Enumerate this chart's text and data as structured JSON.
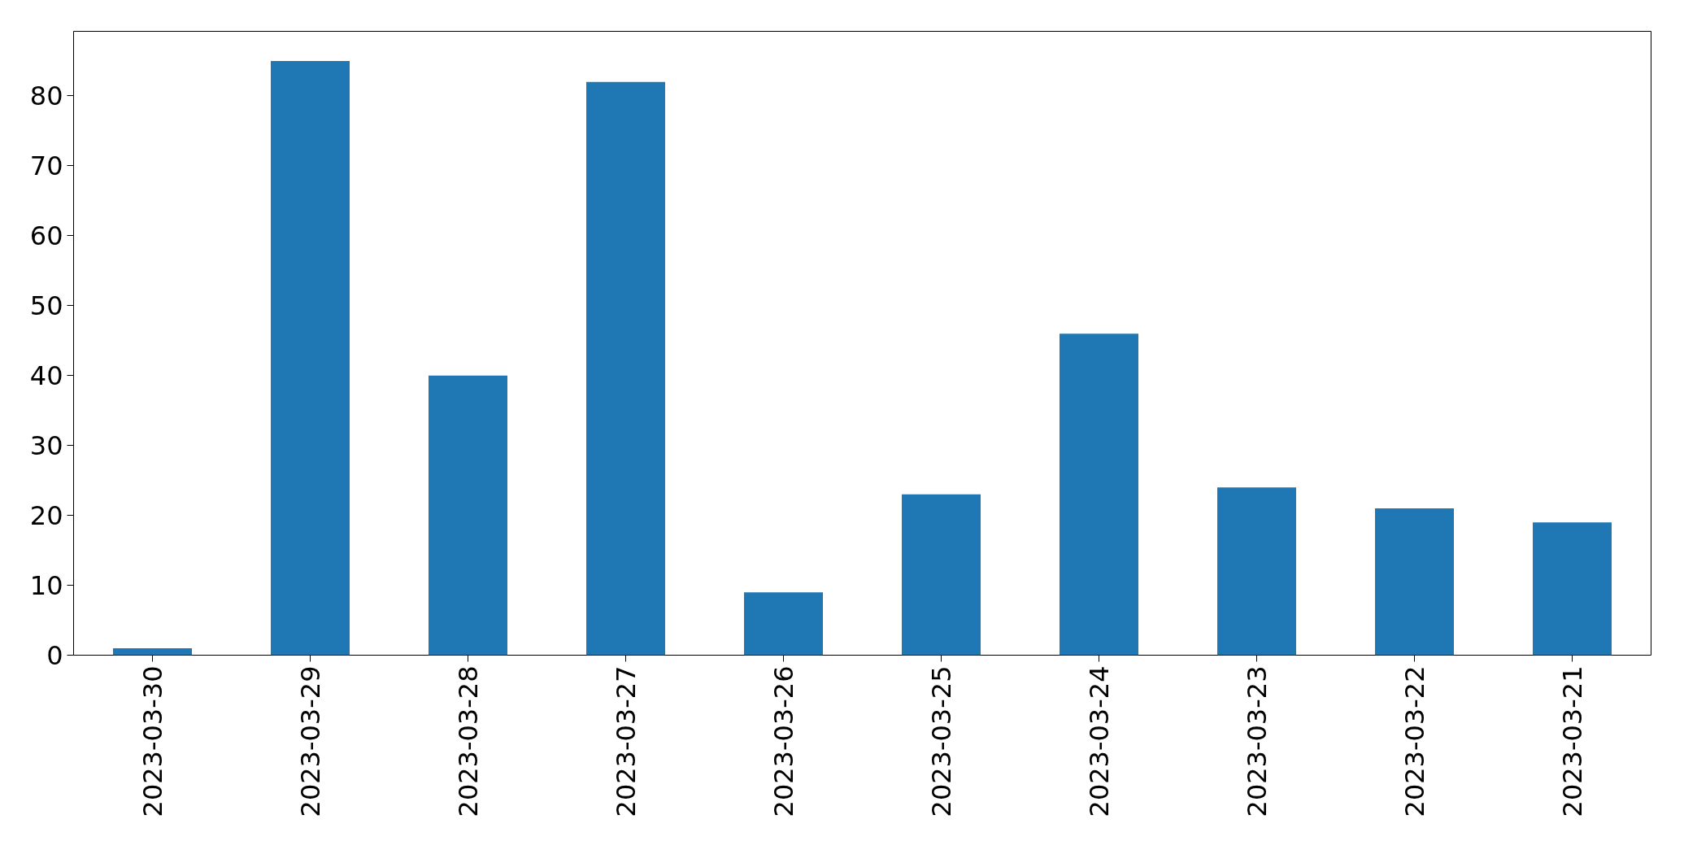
{
  "chart_data": {
    "type": "bar",
    "categories": [
      "2023-03-30",
      "2023-03-29",
      "2023-03-28",
      "2023-03-27",
      "2023-03-26",
      "2023-03-25",
      "2023-03-24",
      "2023-03-23",
      "2023-03-22",
      "2023-03-21"
    ],
    "values": [
      1,
      85,
      40,
      82,
      9,
      23,
      46,
      24,
      21,
      19
    ],
    "color": "#1f77b4",
    "ylim": [
      0,
      89.25
    ],
    "yticks": [
      0,
      10,
      20,
      30,
      40,
      50,
      60,
      70,
      80
    ],
    "grid": false
  }
}
